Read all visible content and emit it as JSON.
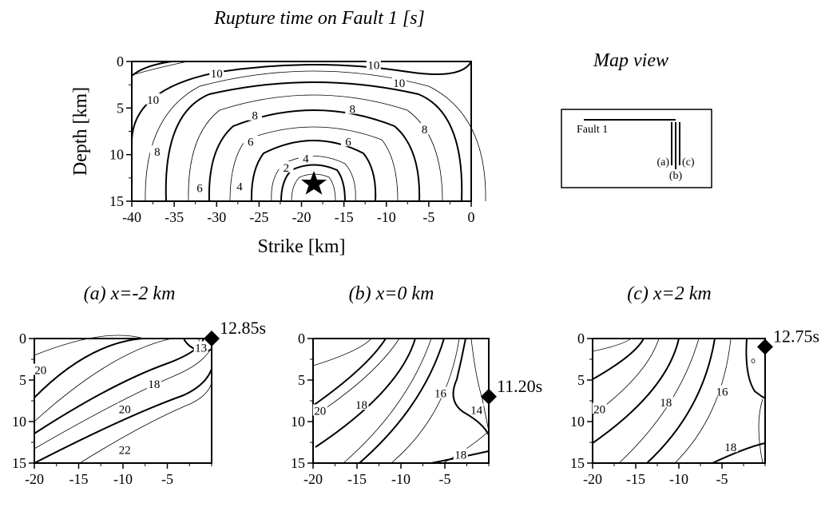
{
  "chart_data": [
    {
      "type": "contour",
      "title": "Rupture time on Fault 1 [s]",
      "xlabel": "Strike [km]",
      "ylabel": "Depth [km]",
      "xlim": [
        -40,
        0
      ],
      "ylim": [
        0,
        15
      ],
      "xticks": [
        "-40",
        "-35",
        "-30",
        "-25",
        "-20",
        "-15",
        "-10",
        "-5",
        "0"
      ],
      "yticks": [
        "0",
        "5",
        "10",
        "15"
      ],
      "hypocenter": {
        "x": -20,
        "y": 13
      },
      "contour_labels": [
        {
          "text": "10",
          "x": -11.5,
          "y": 0.4
        },
        {
          "text": "10",
          "x": -30,
          "y": 1.3
        },
        {
          "text": "10",
          "x": -8.5,
          "y": 2.3
        },
        {
          "text": "10",
          "x": -37.5,
          "y": 4.1
        },
        {
          "text": "8",
          "x": -25.5,
          "y": 5.8
        },
        {
          "text": "8",
          "x": -14,
          "y": 5.1
        },
        {
          "text": "8",
          "x": -5.5,
          "y": 7.3
        },
        {
          "text": "8",
          "x": -37,
          "y": 9.7
        },
        {
          "text": "6",
          "x": -26,
          "y": 8.6
        },
        {
          "text": "6",
          "x": -14.5,
          "y": 8.6
        },
        {
          "text": "6",
          "x": -32,
          "y": 13.6
        },
        {
          "text": "4",
          "x": -19.5,
          "y": 10.4
        },
        {
          "text": "4",
          "x": -27.3,
          "y": 13.4
        },
        {
          "text": "2",
          "x": -21.8,
          "y": 11.4
        }
      ]
    },
    {
      "type": "contour",
      "title": "(a) x=-2 km",
      "xlim": [
        -20,
        0
      ],
      "ylim": [
        0,
        15
      ],
      "xticks": [
        "-20",
        "-15",
        "-10",
        "-5"
      ],
      "yticks": [
        "0",
        "5",
        "10",
        "15"
      ],
      "marker": {
        "x": 0,
        "y": 0,
        "label": "12.85s"
      },
      "contour_labels": [
        {
          "text": "20",
          "x": -19.3,
          "y": 3.8
        },
        {
          "text": "18",
          "x": -6.5,
          "y": 5.5
        },
        {
          "text": "20",
          "x": -9.8,
          "y": 8.5
        },
        {
          "text": "22",
          "x": -9.8,
          "y": 13.4
        },
        {
          "text": "13",
          "x": -1.2,
          "y": 1.1
        }
      ]
    },
    {
      "type": "contour",
      "title": "(b) x=0 km",
      "xlim": [
        -20,
        0
      ],
      "ylim": [
        0,
        15
      ],
      "xticks": [
        "-20",
        "-15",
        "-10",
        "-5"
      ],
      "yticks": [
        "0",
        "5",
        "10",
        "15"
      ],
      "marker": {
        "x": 0,
        "y": 7,
        "label": "11.20s"
      },
      "contour_labels": [
        {
          "text": "20",
          "x": -19.2,
          "y": 8.7
        },
        {
          "text": "18",
          "x": -14.5,
          "y": 8
        },
        {
          "text": "16",
          "x": -5.5,
          "y": 6.6
        },
        {
          "text": "14",
          "x": -1.4,
          "y": 8.6
        },
        {
          "text": "18",
          "x": -3.2,
          "y": 14
        }
      ]
    },
    {
      "type": "contour",
      "title": "(c) x=2 km",
      "xlim": [
        -20,
        0
      ],
      "ylim": [
        0,
        15
      ],
      "xticks": [
        "-20",
        "-15",
        "-10",
        "-5"
      ],
      "yticks": [
        "0",
        "5",
        "10",
        "15"
      ],
      "marker": {
        "x": 0,
        "y": 1,
        "label": "12.75s"
      },
      "contour_labels": [
        {
          "text": "20",
          "x": -19.2,
          "y": 8.5
        },
        {
          "text": "18",
          "x": -11.5,
          "y": 7.7
        },
        {
          "text": "16",
          "x": -5,
          "y": 6.4
        },
        {
          "text": "18",
          "x": -4,
          "y": 13.1
        }
      ]
    }
  ],
  "map_view": {
    "title": "Map view",
    "fault_label": "Fault 1",
    "line_labels": [
      "(a)",
      "(b)",
      "(c)"
    ]
  }
}
